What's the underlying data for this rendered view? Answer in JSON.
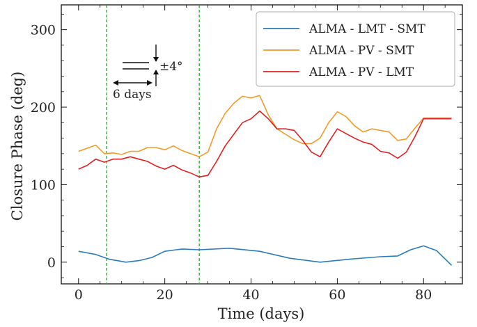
{
  "chart_data": {
    "type": "line",
    "title": "",
    "xlabel": "Time (days)",
    "ylabel": "Closure Phase (deg)",
    "xlim": [
      -4,
      89
    ],
    "ylim": [
      -28,
      332
    ],
    "xticks": [
      0,
      20,
      40,
      60,
      80
    ],
    "yticks": [
      0,
      100,
      200,
      300
    ],
    "grid": false,
    "legend_position": "top-right",
    "vlines": [
      {
        "x": 6.5,
        "color": "#22aa22",
        "style": "dashed"
      },
      {
        "x": 28,
        "color": "#22aa22",
        "style": "dashed"
      }
    ],
    "annotations": {
      "phase_scale_label": "±4°",
      "time_scale_label": "6 days"
    },
    "series": [
      {
        "name": "ALMA - LMT - SMT",
        "color": "#2b7bba",
        "x": [
          0,
          4,
          7,
          11,
          14,
          17,
          20,
          24,
          28,
          35,
          42,
          49,
          56,
          63,
          70,
          74,
          77,
          80,
          83,
          86.5
        ],
        "y": [
          14,
          10,
          4,
          0,
          2,
          6,
          14,
          17,
          16,
          18,
          14,
          5,
          0,
          4,
          7,
          8,
          16,
          21,
          15,
          -4
        ]
      },
      {
        "name": "ALMA - PV - SMT",
        "color": "#f39a2a",
        "x": [
          0,
          4,
          6,
          8,
          10,
          12,
          14,
          16,
          18,
          20,
          22,
          24,
          26,
          28,
          30,
          32,
          34,
          36,
          38,
          40,
          42,
          44,
          46,
          48,
          50,
          52,
          54,
          56,
          58,
          60,
          62,
          64,
          66,
          68,
          70,
          72,
          74,
          76,
          78,
          80,
          82,
          84,
          86.5
        ],
        "y": [
          143,
          151,
          140,
          141,
          139,
          143,
          143,
          148,
          148,
          145,
          150,
          144,
          140,
          136,
          142,
          172,
          192,
          205,
          214,
          212,
          215,
          190,
          172,
          165,
          158,
          153,
          153,
          160,
          180,
          194,
          188,
          176,
          168,
          172,
          170,
          168,
          157,
          159,
          173,
          186,
          186,
          186,
          186
        ]
      },
      {
        "name": "ALMA - PV - LMT",
        "color": "#e02020",
        "x": [
          0,
          2,
          4,
          6,
          8,
          10,
          12,
          14,
          16,
          18,
          20,
          22,
          24,
          26,
          28,
          30,
          32,
          34,
          36,
          38,
          40,
          42,
          44,
          46,
          48,
          50,
          52,
          54,
          56,
          58,
          60,
          62,
          64,
          66,
          68,
          70,
          72,
          74,
          76,
          78,
          80,
          82,
          84,
          86.5
        ],
        "y": [
          120,
          125,
          133,
          129,
          133,
          133,
          136,
          133,
          130,
          124,
          120,
          125,
          119,
          115,
          110,
          112,
          130,
          150,
          165,
          180,
          185,
          195,
          185,
          172,
          172,
          170,
          157,
          142,
          136,
          155,
          172,
          166,
          160,
          155,
          152,
          143,
          141,
          134,
          142,
          162,
          185,
          185,
          185,
          185
        ]
      }
    ]
  }
}
